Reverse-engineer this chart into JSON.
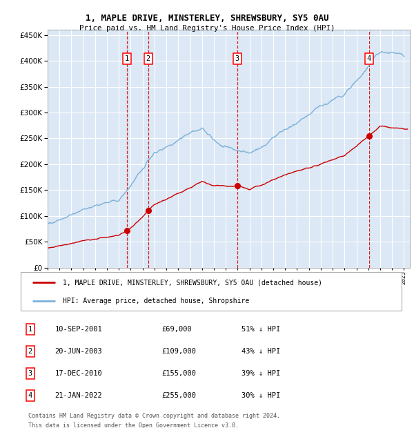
{
  "title1": "1, MAPLE DRIVE, MINSTERLEY, SHREWSBURY, SY5 0AU",
  "title2": "Price paid vs. HM Land Registry's House Price Index (HPI)",
  "background_color": "#ffffff",
  "plot_bg_color": "#dce8f5",
  "grid_color": "#ffffff",
  "hpi_color": "#7ab0d8",
  "price_color": "#cc0000",
  "transactions": [
    {
      "num": 1,
      "date_label": "10-SEP-2001",
      "price": 69000,
      "hpi_pct": "51% ↓ HPI",
      "x_year": 2001.69
    },
    {
      "num": 2,
      "date_label": "20-JUN-2003",
      "price": 109000,
      "hpi_pct": "43% ↓ HPI",
      "x_year": 2003.47
    },
    {
      "num": 3,
      "date_label": "17-DEC-2010",
      "price": 155000,
      "hpi_pct": "39% ↓ HPI",
      "x_year": 2010.96
    },
    {
      "num": 4,
      "date_label": "21-JAN-2022",
      "price": 255000,
      "hpi_pct": "30% ↓ HPI",
      "x_year": 2022.05
    }
  ],
  "legend_label_red": "1, MAPLE DRIVE, MINSTERLEY, SHREWSBURY, SY5 0AU (detached house)",
  "legend_label_blue": "HPI: Average price, detached house, Shropshire",
  "footer1": "Contains HM Land Registry data © Crown copyright and database right 2024.",
  "footer2": "This data is licensed under the Open Government Licence v3.0.",
  "xlim": [
    1995,
    2025.5
  ],
  "ylim": [
    0,
    460000
  ],
  "yticks": [
    0,
    50000,
    100000,
    150000,
    200000,
    250000,
    300000,
    350000,
    400000,
    450000
  ]
}
